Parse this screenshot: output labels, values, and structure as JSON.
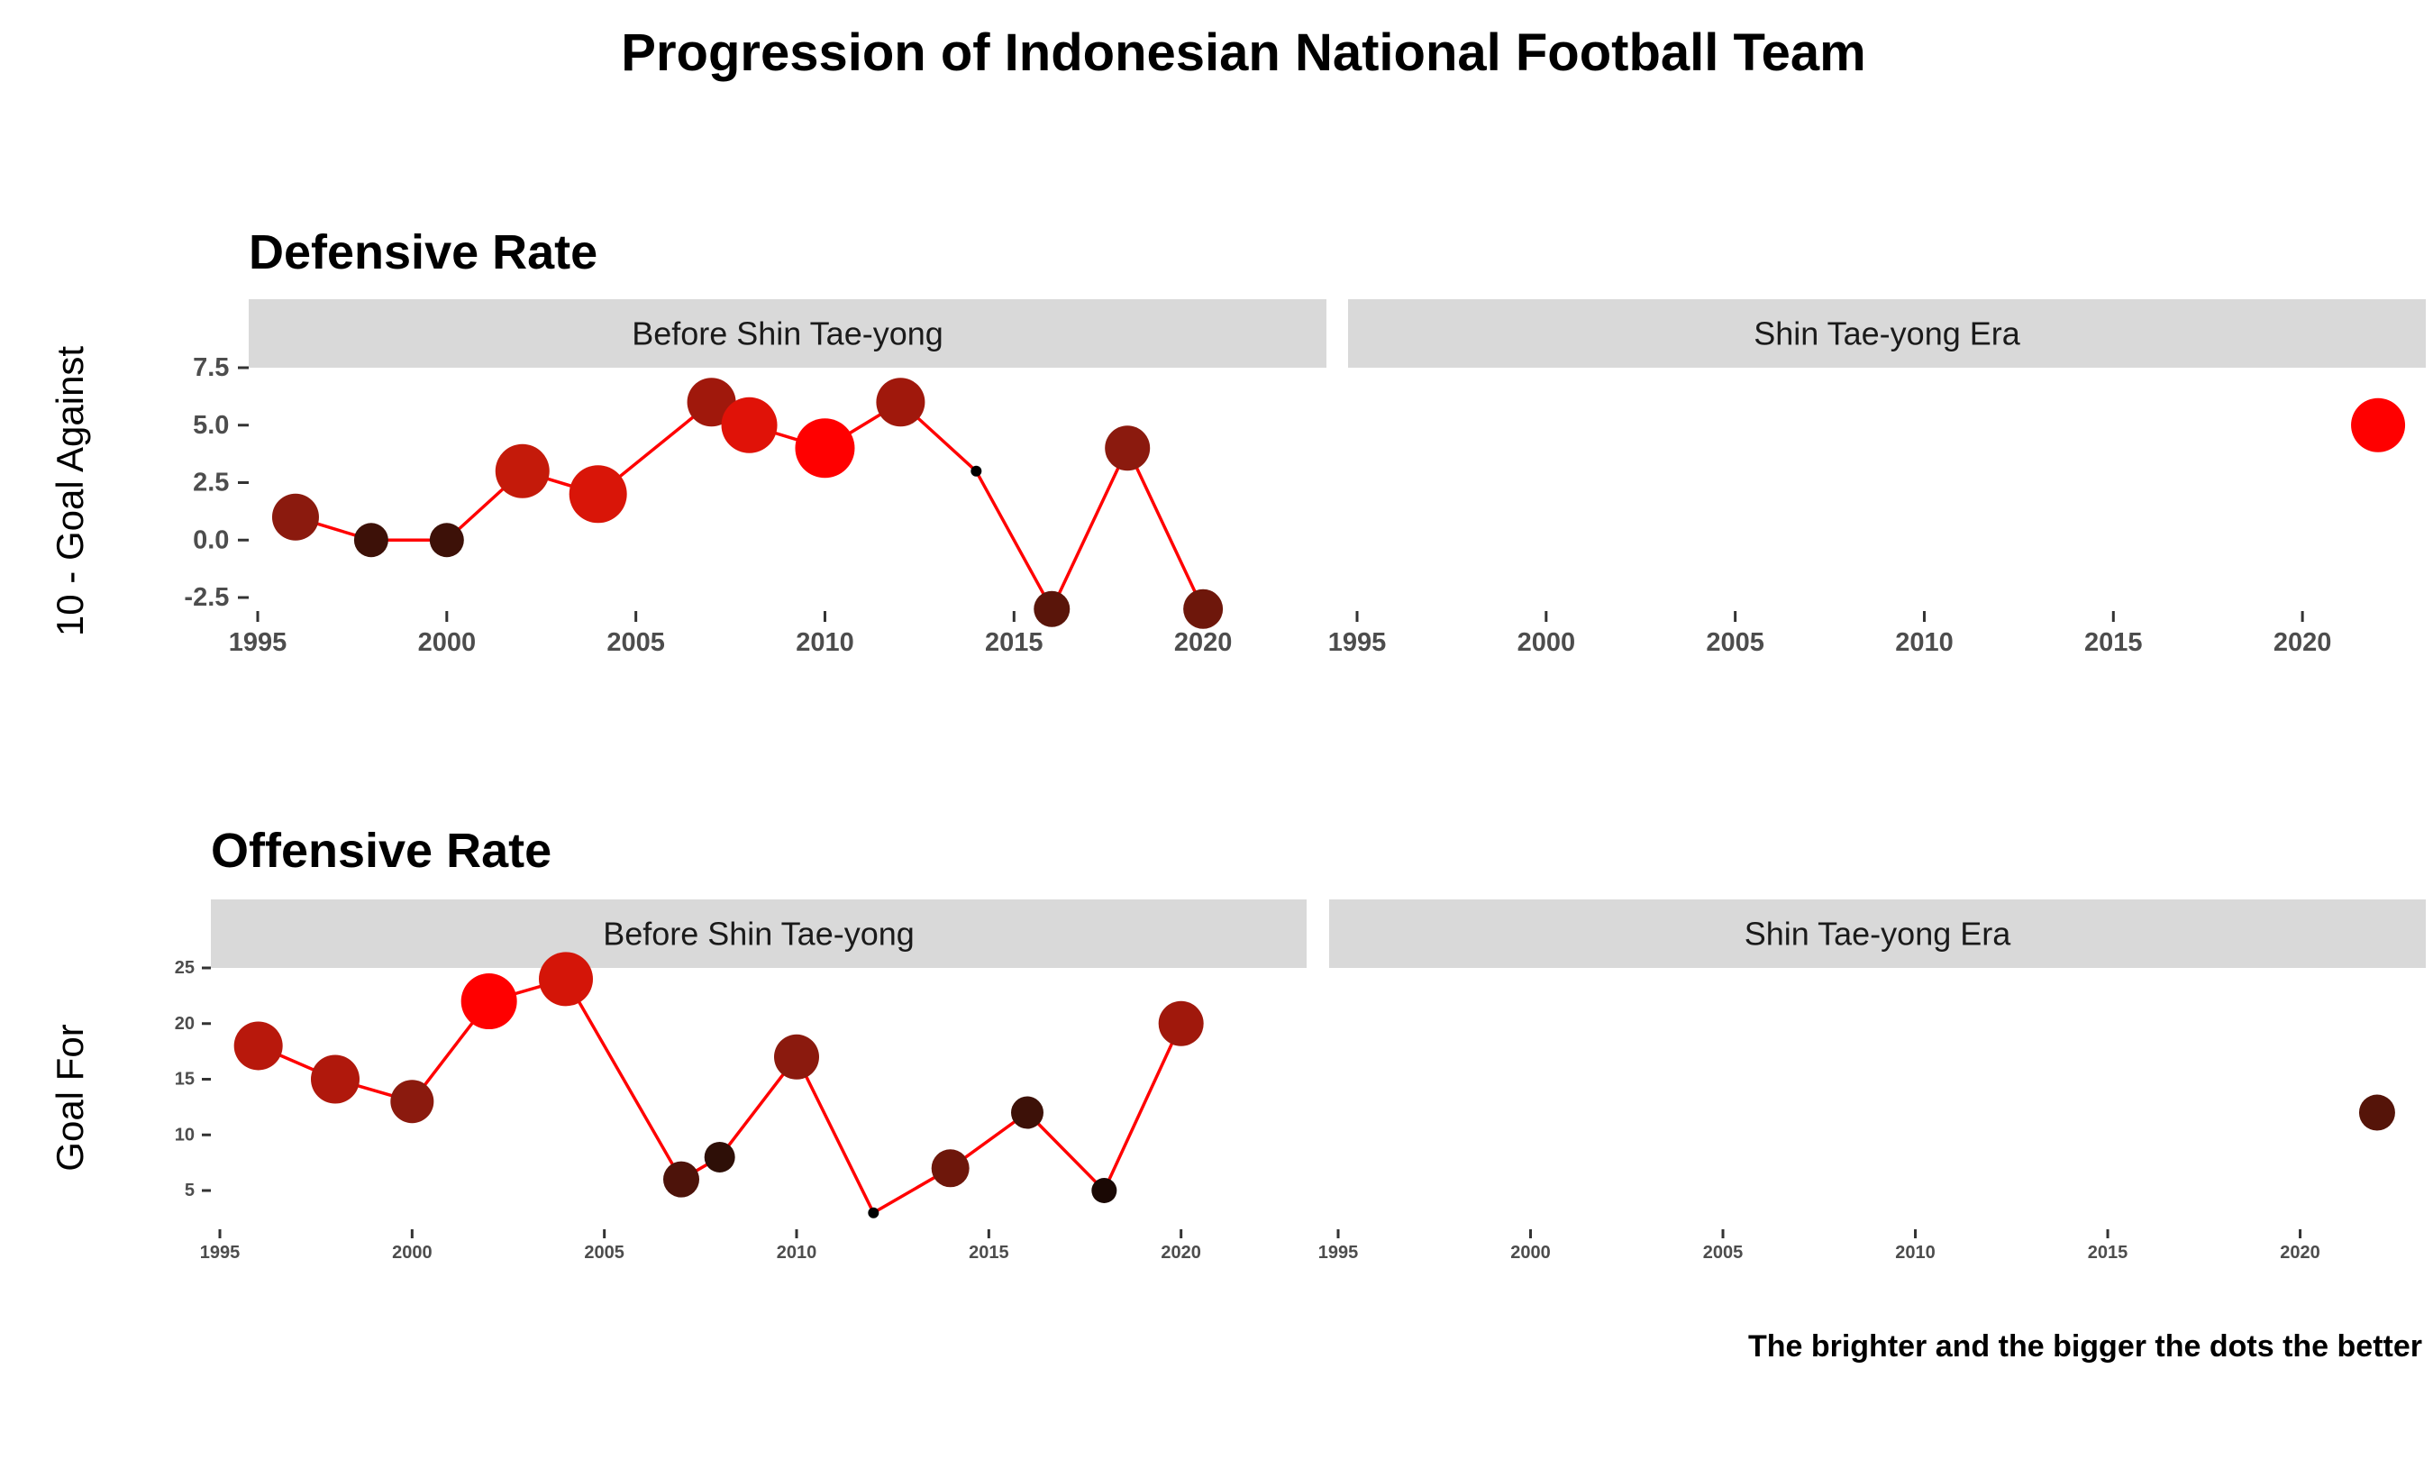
{
  "title": "Progression of Indonesian National Football Team",
  "caption": "The brighter and the bigger the dots the better",
  "chart_data": [
    {
      "type": "scatter",
      "title": "Defensive Rate",
      "ylabel": "10 - Goal Against",
      "xlabel": "",
      "facets": [
        "Before Shin Tae-yong",
        "Shin Tae-yong Era"
      ],
      "xlim": [
        1995,
        2023.5
      ],
      "xticks": [
        1995,
        2000,
        2005,
        2010,
        2015,
        2020
      ],
      "ylim": [
        -3.2,
        7.5
      ],
      "yticks": [
        7.5,
        5.0,
        2.5,
        0.0,
        -2.5
      ],
      "ytick_labels": [
        "7.5",
        "5.0",
        "2.5",
        "0.0",
        "-2.5"
      ],
      "grid": false,
      "encoding": "dot size and brightness increase with value",
      "line_color": "#ff0000",
      "series": [
        {
          "facet": "Before Shin Tae-yong",
          "x": [
            1996,
            1998,
            2000,
            2002,
            2004,
            2007,
            2008,
            2010,
            2012,
            2014,
            2016,
            2018,
            2020
          ],
          "y": [
            1,
            0,
            0,
            3,
            2,
            6,
            5,
            4,
            6,
            3,
            -3,
            4,
            -3
          ],
          "colors": [
            "#8b1a0e",
            "#3d1108",
            "#3d1108",
            "#c41a0a",
            "#d91508",
            "#a0180c",
            "#e01208",
            "#ff0000",
            "#a0180c",
            "#000000",
            "#5a150a",
            "#8b1a0e",
            "#6e170b"
          ],
          "sizes": [
            26,
            19,
            19,
            30,
            32,
            27,
            31,
            33,
            27,
            6,
            20,
            25,
            22
          ]
        },
        {
          "facet": "Shin Tae-yong Era",
          "x": [
            2022
          ],
          "y": [
            5
          ],
          "colors": [
            "#ff0000"
          ],
          "sizes": [
            30
          ]
        }
      ]
    },
    {
      "type": "scatter",
      "title": "Offensive Rate",
      "ylabel": "Goal For",
      "xlabel": "",
      "facets": [
        "Before Shin Tae-yong",
        "Shin Tae-yong Era"
      ],
      "xlim": [
        1995,
        2023.5
      ],
      "xticks": [
        1995,
        2000,
        2005,
        2010,
        2015,
        2020
      ],
      "ylim": [
        2,
        25
      ],
      "yticks": [
        25,
        20,
        15,
        10,
        5
      ],
      "ytick_labels": [
        "25",
        "20",
        "15",
        "10",
        "5"
      ],
      "grid": false,
      "encoding": "dot size and brightness increase with value",
      "line_color": "#ff0000",
      "series": [
        {
          "facet": "Before Shin Tae-yong",
          "x": [
            1996,
            1998,
            2000,
            2002,
            2004,
            2007,
            2008,
            2010,
            2012,
            2014,
            2016,
            2018,
            2020
          ],
          "y": [
            18,
            15,
            13,
            22,
            24,
            6,
            8,
            17,
            3,
            7,
            12,
            5,
            20
          ],
          "colors": [
            "#b8180c",
            "#b0180c",
            "#8b1a0e",
            "#ff0000",
            "#d41508",
            "#4d130a",
            "#2e0f07",
            "#8b1a0e",
            "#000000",
            "#6e170b",
            "#3d1108",
            "#1a0804",
            "#a0180c"
          ],
          "sizes": [
            27,
            27,
            24,
            31,
            30,
            20,
            17,
            25,
            6,
            21,
            18,
            14,
            25
          ]
        },
        {
          "facet": "Shin Tae-yong Era",
          "x": [
            2022
          ],
          "y": [
            12
          ],
          "colors": [
            "#551409"
          ],
          "sizes": [
            20
          ]
        }
      ]
    }
  ]
}
